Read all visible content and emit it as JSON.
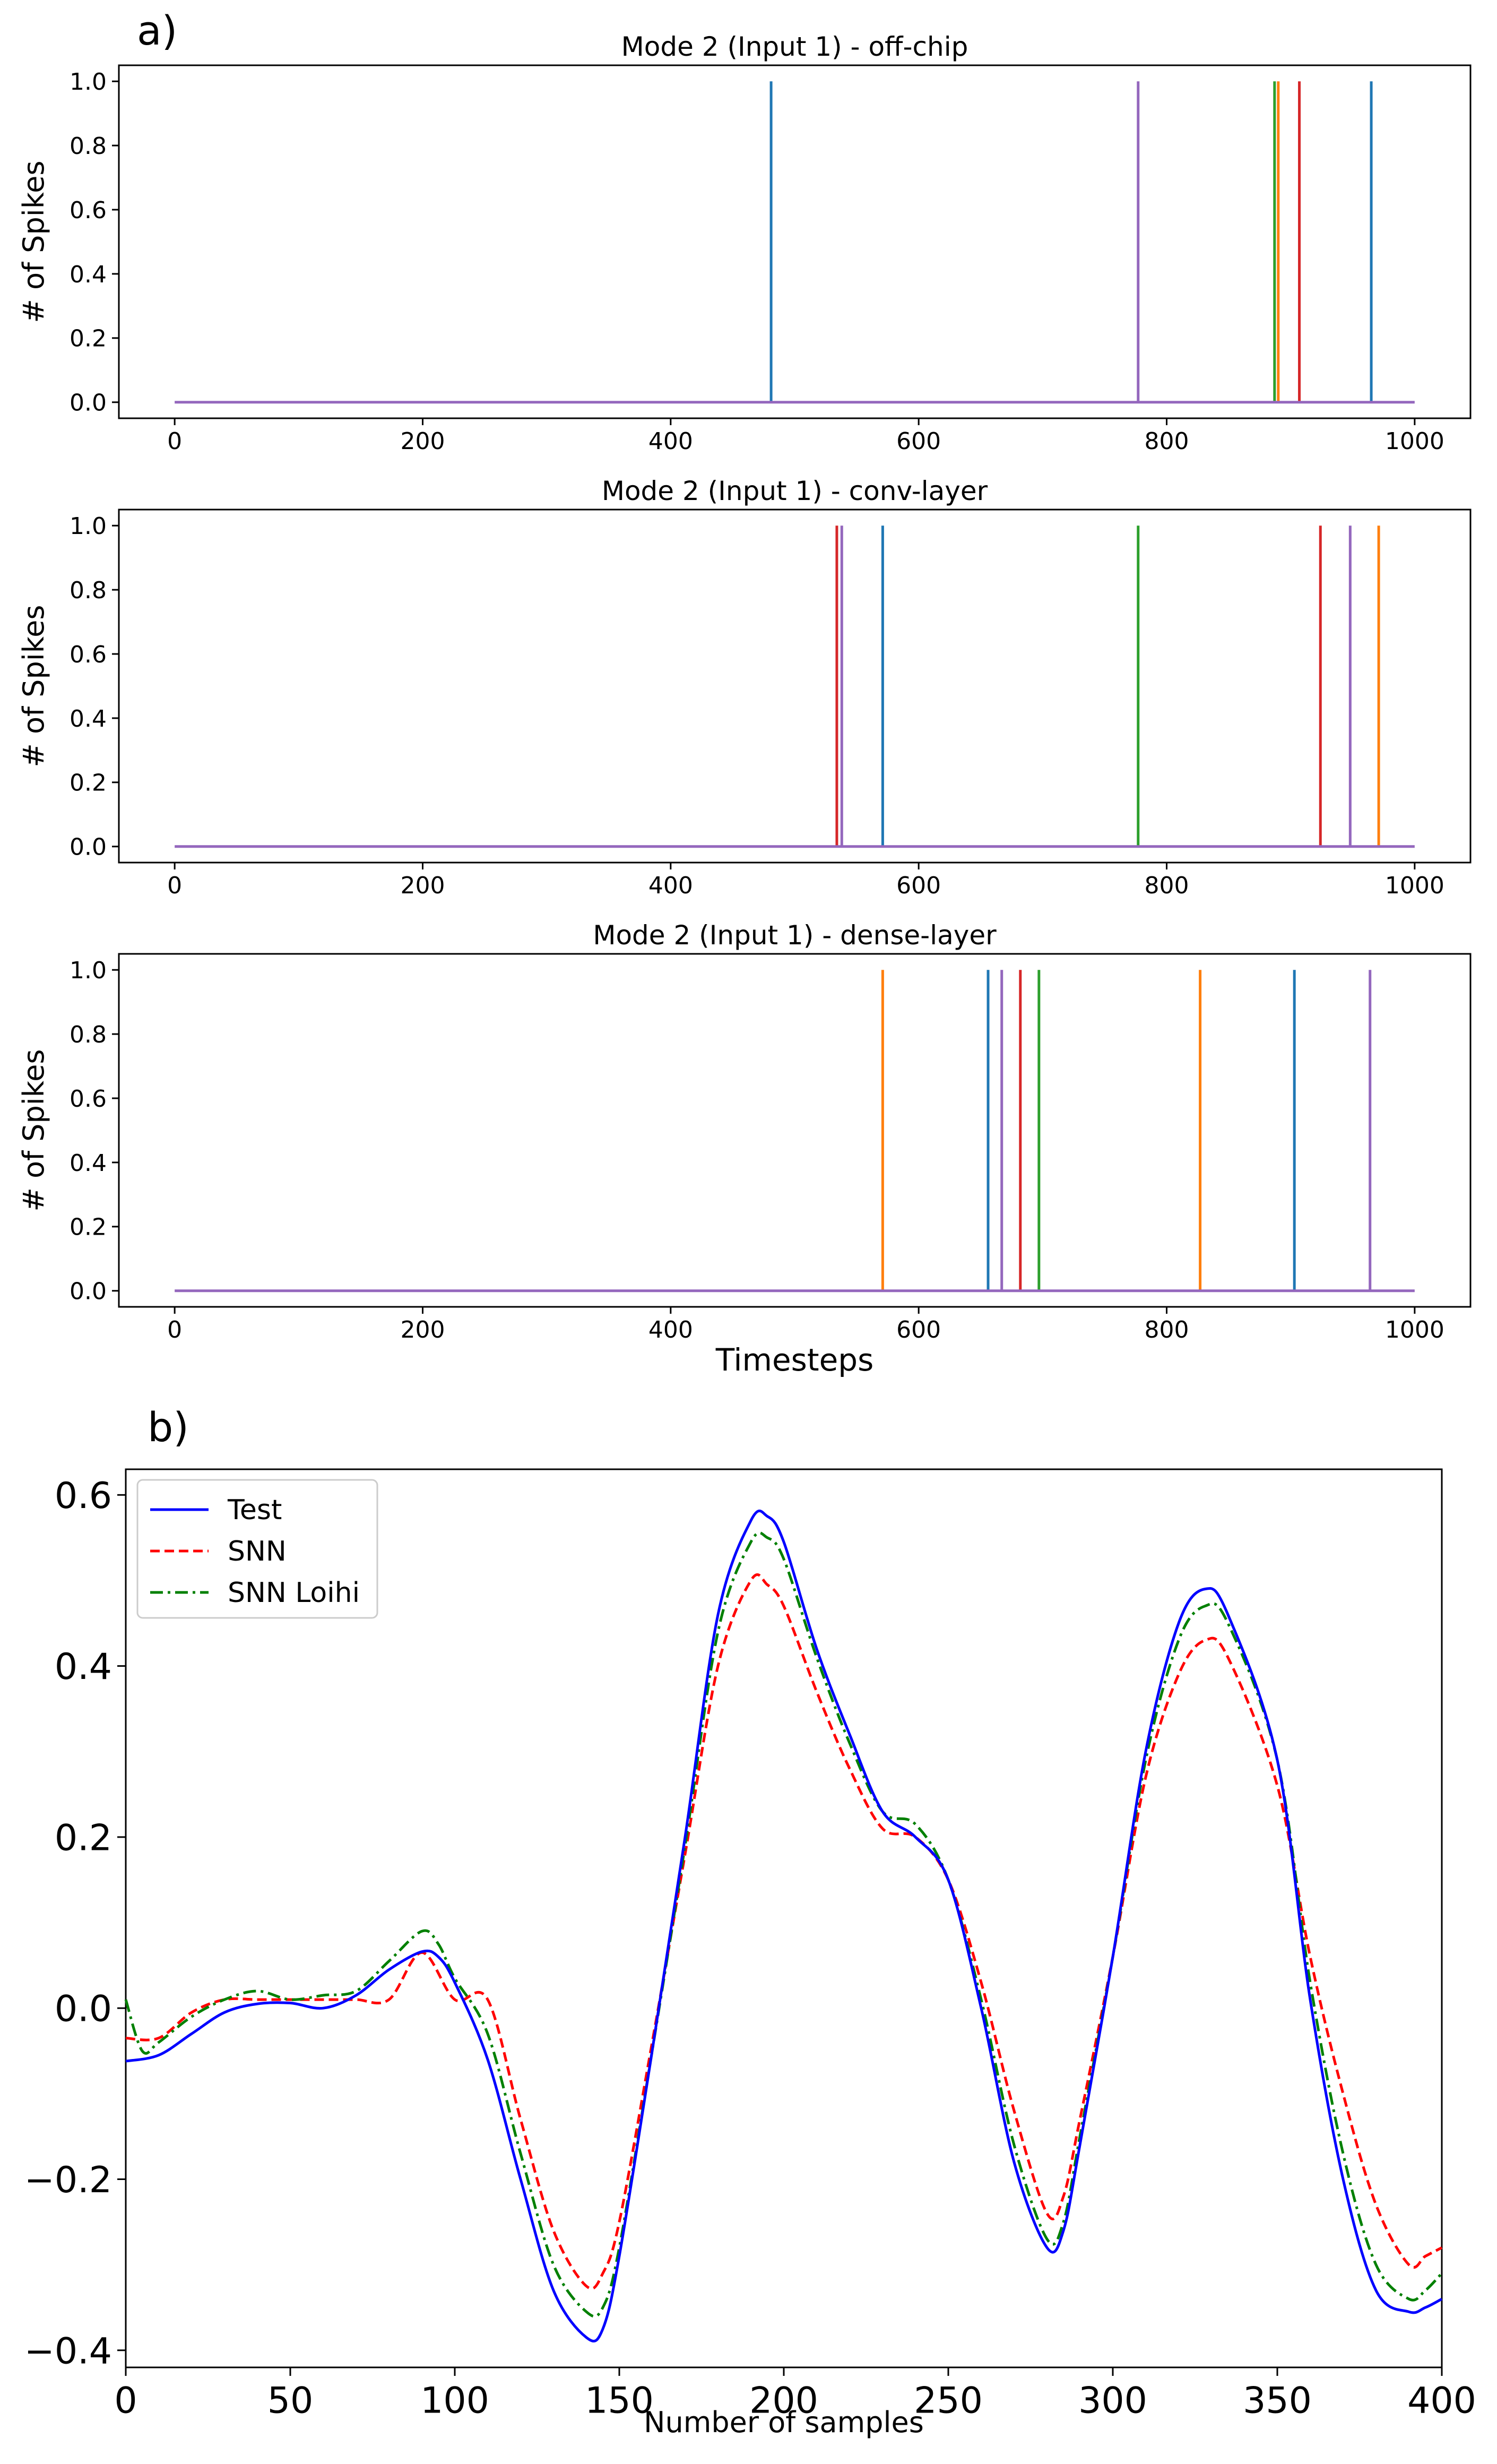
{
  "figure": {
    "panel_a_label": "a)",
    "panel_b_label": "b)"
  },
  "chart_data": [
    {
      "type": "line",
      "panel": "a",
      "title": "Mode 2 (Input 1) - off-chip",
      "xlabel": "",
      "ylabel": "# of Spikes",
      "xlim": [
        -45,
        1045
      ],
      "ylim": [
        -0.05,
        1.05
      ],
      "xticks": [
        0,
        200,
        400,
        600,
        800,
        1000
      ],
      "yticks": [
        0.0,
        0.2,
        0.4,
        0.6,
        0.8,
        1.0
      ],
      "ytick_labels": [
        "0.0",
        "0.2",
        "0.4",
        "0.6",
        "0.8",
        "1.0"
      ],
      "baseline_range": [
        0,
        1000
      ],
      "colors": [
        "#1f77b4",
        "#ff7f0e",
        "#2ca02c",
        "#d62728",
        "#9467bd"
      ],
      "spikes": [
        {
          "t": 481,
          "color": "#1f77b4"
        },
        {
          "t": 777,
          "color": "#9467bd"
        },
        {
          "t": 887,
          "color": "#2ca02c"
        },
        {
          "t": 890,
          "color": "#ff7f0e"
        },
        {
          "t": 907,
          "color": "#d62728"
        },
        {
          "t": 965,
          "color": "#1f77b4"
        }
      ]
    },
    {
      "type": "line",
      "panel": "a",
      "title": "Mode 2 (Input 1) - conv-layer",
      "xlabel": "",
      "ylabel": "# of Spikes",
      "xlim": [
        -45,
        1045
      ],
      "ylim": [
        -0.05,
        1.05
      ],
      "xticks": [
        0,
        200,
        400,
        600,
        800,
        1000
      ],
      "yticks": [
        0.0,
        0.2,
        0.4,
        0.6,
        0.8,
        1.0
      ],
      "ytick_labels": [
        "0.0",
        "0.2",
        "0.4",
        "0.6",
        "0.8",
        "1.0"
      ],
      "baseline_range": [
        0,
        1000
      ],
      "spikes": [
        {
          "t": 534,
          "color": "#d62728"
        },
        {
          "t": 538,
          "color": "#9467bd"
        },
        {
          "t": 571,
          "color": "#1f77b4"
        },
        {
          "t": 777,
          "color": "#2ca02c"
        },
        {
          "t": 924,
          "color": "#d62728"
        },
        {
          "t": 948,
          "color": "#9467bd"
        },
        {
          "t": 971,
          "color": "#ff7f0e"
        }
      ]
    },
    {
      "type": "line",
      "panel": "a",
      "title": "Mode 2 (Input 1) - dense-layer",
      "xlabel": "Timesteps",
      "ylabel": "# of Spikes",
      "xlim": [
        -45,
        1045
      ],
      "ylim": [
        -0.05,
        1.05
      ],
      "xticks": [
        0,
        200,
        400,
        600,
        800,
        1000
      ],
      "yticks": [
        0.0,
        0.2,
        0.4,
        0.6,
        0.8,
        1.0
      ],
      "ytick_labels": [
        "0.0",
        "0.2",
        "0.4",
        "0.6",
        "0.8",
        "1.0"
      ],
      "baseline_range": [
        0,
        1000
      ],
      "spikes": [
        {
          "t": 571,
          "color": "#ff7f0e"
        },
        {
          "t": 656,
          "color": "#1f77b4"
        },
        {
          "t": 667,
          "color": "#9467bd"
        },
        {
          "t": 682,
          "color": "#d62728"
        },
        {
          "t": 697,
          "color": "#2ca02c"
        },
        {
          "t": 827,
          "color": "#ff7f0e"
        },
        {
          "t": 903,
          "color": "#1f77b4"
        },
        {
          "t": 964,
          "color": "#9467bd"
        }
      ]
    },
    {
      "type": "line",
      "panel": "b",
      "title": "",
      "xlabel": "Number of samples",
      "ylabel": "",
      "xlim": [
        0,
        400
      ],
      "ylim": [
        -0.42,
        0.63
      ],
      "xticks": [
        0,
        50,
        100,
        150,
        200,
        250,
        300,
        350,
        400
      ],
      "yticks": [
        -0.4,
        -0.2,
        0.0,
        0.2,
        0.4,
        0.6
      ],
      "ytick_labels": [
        "−0.4",
        "−0.2",
        "0.0",
        "0.2",
        "0.4",
        "0.6"
      ],
      "legend_position": "top-left",
      "series": [
        {
          "name": "Test",
          "color": "#0000ff",
          "style": "solid",
          "points": [
            [
              0,
              -0.062
            ],
            [
              10,
              -0.055
            ],
            [
              20,
              -0.03
            ],
            [
              30,
              -0.005
            ],
            [
              40,
              0.005
            ],
            [
              50,
              0.006
            ],
            [
              60,
              0.0
            ],
            [
              70,
              0.015
            ],
            [
              80,
              0.045
            ],
            [
              90,
              0.066
            ],
            [
              95,
              0.06
            ],
            [
              100,
              0.03
            ],
            [
              110,
              -0.06
            ],
            [
              120,
              -0.2
            ],
            [
              130,
              -0.33
            ],
            [
              140,
              -0.385
            ],
            [
              145,
              -0.375
            ],
            [
              150,
              -0.29
            ],
            [
              160,
              -0.05
            ],
            [
              170,
              0.2
            ],
            [
              180,
              0.46
            ],
            [
              190,
              0.57
            ],
            [
              195,
              0.575
            ],
            [
              200,
              0.545
            ],
            [
              210,
              0.42
            ],
            [
              220,
              0.32
            ],
            [
              230,
              0.23
            ],
            [
              240,
              0.2
            ],
            [
              250,
              0.15
            ],
            [
              260,
              0.0
            ],
            [
              270,
              -0.18
            ],
            [
              280,
              -0.28
            ],
            [
              285,
              -0.26
            ],
            [
              290,
              -0.16
            ],
            [
              300,
              0.06
            ],
            [
              310,
              0.3
            ],
            [
              320,
              0.45
            ],
            [
              328,
              0.49
            ],
            [
              335,
              0.46
            ],
            [
              350,
              0.29
            ],
            [
              360,
              0.01
            ],
            [
              370,
              -0.2
            ],
            [
              380,
              -0.33
            ],
            [
              390,
              -0.355
            ],
            [
              395,
              -0.35
            ],
            [
              400,
              -0.34
            ]
          ]
        },
        {
          "name": "SNN",
          "color": "#ff0000",
          "style": "dashed",
          "points": [
            [
              0,
              -0.035
            ],
            [
              10,
              -0.035
            ],
            [
              20,
              -0.005
            ],
            [
              30,
              0.01
            ],
            [
              40,
              0.01
            ],
            [
              50,
              0.01
            ],
            [
              60,
              0.01
            ],
            [
              70,
              0.01
            ],
            [
              80,
              0.01
            ],
            [
              90,
              0.065
            ],
            [
              100,
              0.01
            ],
            [
              110,
              0.01
            ],
            [
              120,
              -0.13
            ],
            [
              130,
              -0.26
            ],
            [
              140,
              -0.325
            ],
            [
              145,
              -0.31
            ],
            [
              150,
              -0.25
            ],
            [
              160,
              -0.04
            ],
            [
              170,
              0.18
            ],
            [
              180,
              0.4
            ],
            [
              190,
              0.5
            ],
            [
              195,
              0.495
            ],
            [
              200,
              0.47
            ],
            [
              210,
              0.37
            ],
            [
              220,
              0.28
            ],
            [
              230,
              0.21
            ],
            [
              240,
              0.2
            ],
            [
              250,
              0.15
            ],
            [
              260,
              0.03
            ],
            [
              270,
              -0.12
            ],
            [
              280,
              -0.24
            ],
            [
              285,
              -0.22
            ],
            [
              290,
              -0.13
            ],
            [
              300,
              0.06
            ],
            [
              310,
              0.27
            ],
            [
              320,
              0.39
            ],
            [
              328,
              0.43
            ],
            [
              335,
              0.41
            ],
            [
              350,
              0.26
            ],
            [
              360,
              0.06
            ],
            [
              370,
              -0.1
            ],
            [
              380,
              -0.23
            ],
            [
              390,
              -0.3
            ],
            [
              395,
              -0.29
            ],
            [
              400,
              -0.28
            ]
          ]
        },
        {
          "name": "SNN Loihi",
          "color": "#008000",
          "style": "dashdot",
          "points": [
            [
              0,
              0.01
            ],
            [
              5,
              -0.05
            ],
            [
              10,
              -0.04
            ],
            [
              20,
              -0.01
            ],
            [
              30,
              0.01
            ],
            [
              40,
              0.02
            ],
            [
              50,
              0.01
            ],
            [
              60,
              0.015
            ],
            [
              70,
              0.02
            ],
            [
              80,
              0.055
            ],
            [
              90,
              0.09
            ],
            [
              95,
              0.075
            ],
            [
              100,
              0.035
            ],
            [
              110,
              -0.03
            ],
            [
              120,
              -0.17
            ],
            [
              130,
              -0.3
            ],
            [
              140,
              -0.355
            ],
            [
              145,
              -0.35
            ],
            [
              150,
              -0.28
            ],
            [
              160,
              -0.05
            ],
            [
              170,
              0.19
            ],
            [
              180,
              0.44
            ],
            [
              190,
              0.545
            ],
            [
              195,
              0.55
            ],
            [
              200,
              0.525
            ],
            [
              210,
              0.41
            ],
            [
              220,
              0.31
            ],
            [
              230,
              0.23
            ],
            [
              240,
              0.215
            ],
            [
              250,
              0.15
            ],
            [
              260,
              0.01
            ],
            [
              270,
              -0.16
            ],
            [
              280,
              -0.27
            ],
            [
              285,
              -0.25
            ],
            [
              290,
              -0.15
            ],
            [
              300,
              0.06
            ],
            [
              310,
              0.29
            ],
            [
              320,
              0.43
            ],
            [
              328,
              0.47
            ],
            [
              335,
              0.45
            ],
            [
              350,
              0.29
            ],
            [
              360,
              0.03
            ],
            [
              370,
              -0.17
            ],
            [
              380,
              -0.3
            ],
            [
              390,
              -0.34
            ],
            [
              395,
              -0.33
            ],
            [
              400,
              -0.31
            ]
          ]
        }
      ]
    }
  ]
}
